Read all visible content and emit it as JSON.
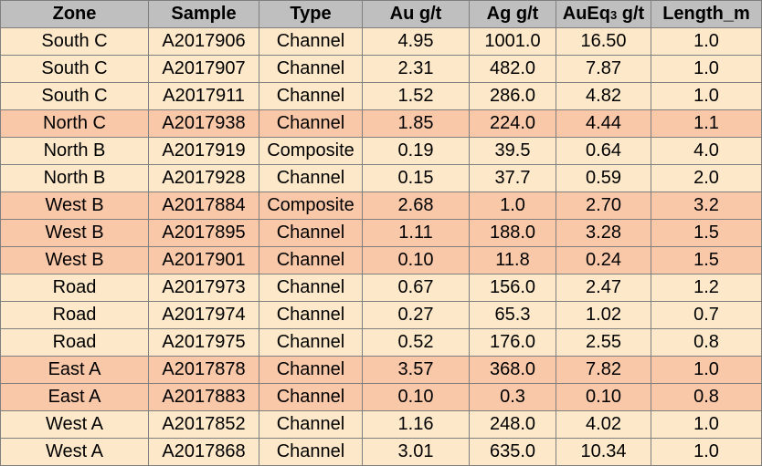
{
  "table": {
    "columns": [
      "Zone",
      "Sample",
      "Type",
      "Au g/t",
      "Ag g/t",
      "AuEq3 g/t",
      "Length_m"
    ],
    "header": {
      "zone": "Zone",
      "sample": "Sample",
      "type": "Type",
      "au": "Au g/t",
      "ag": "Ag g/t",
      "aueq_prefix": "AuEq",
      "aueq_sub": "3",
      "aueq_suffix": " g/t",
      "length": "Length_m"
    },
    "rows": [
      {
        "zone": "South C",
        "sample": "A2017906",
        "type": "Channel",
        "au": "4.95",
        "ag": "1001.0",
        "aueq": "16.50",
        "length": "1.0",
        "shade": "light"
      },
      {
        "zone": "South C",
        "sample": "A2017907",
        "type": "Channel",
        "au": "2.31",
        "ag": "482.0",
        "aueq": "7.87",
        "length": "1.0",
        "shade": "light"
      },
      {
        "zone": "South C",
        "sample": "A2017911",
        "type": "Channel",
        "au": "1.52",
        "ag": "286.0",
        "aueq": "4.82",
        "length": "1.0",
        "shade": "light"
      },
      {
        "zone": "North C",
        "sample": "A2017938",
        "type": "Channel",
        "au": "1.85",
        "ag": "224.0",
        "aueq": "4.44",
        "length": "1.1",
        "shade": "dark"
      },
      {
        "zone": "North B",
        "sample": "A2017919",
        "type": "Composite",
        "au": "0.19",
        "ag": "39.5",
        "aueq": "0.64",
        "length": "4.0",
        "shade": "light"
      },
      {
        "zone": "North B",
        "sample": "A2017928",
        "type": "Channel",
        "au": "0.15",
        "ag": "37.7",
        "aueq": "0.59",
        "length": "2.0",
        "shade": "light"
      },
      {
        "zone": "West B",
        "sample": "A2017884",
        "type": "Composite",
        "au": "2.68",
        "ag": "1.0",
        "aueq": "2.70",
        "length": "3.2",
        "shade": "dark"
      },
      {
        "zone": "West B",
        "sample": "A2017895",
        "type": "Channel",
        "au": "1.11",
        "ag": "188.0",
        "aueq": "3.28",
        "length": "1.5",
        "shade": "dark"
      },
      {
        "zone": "West B",
        "sample": "A2017901",
        "type": "Channel",
        "au": "0.10",
        "ag": "11.8",
        "aueq": "0.24",
        "length": "1.5",
        "shade": "dark"
      },
      {
        "zone": "Road",
        "sample": "A2017973",
        "type": "Channel",
        "au": "0.67",
        "ag": "156.0",
        "aueq": "2.47",
        "length": "1.2",
        "shade": "light"
      },
      {
        "zone": "Road",
        "sample": "A2017974",
        "type": "Channel",
        "au": "0.27",
        "ag": "65.3",
        "aueq": "1.02",
        "length": "0.7",
        "shade": "light"
      },
      {
        "zone": "Road",
        "sample": "A2017975",
        "type": "Channel",
        "au": "0.52",
        "ag": "176.0",
        "aueq": "2.55",
        "length": "0.8",
        "shade": "light"
      },
      {
        "zone": "East A",
        "sample": "A2017878",
        "type": "Channel",
        "au": "3.57",
        "ag": "368.0",
        "aueq": "7.82",
        "length": "1.0",
        "shade": "dark"
      },
      {
        "zone": "East A",
        "sample": "A2017883",
        "type": "Channel",
        "au": "0.10",
        "ag": "0.3",
        "aueq": "0.10",
        "length": "0.8",
        "shade": "dark"
      },
      {
        "zone": "West A",
        "sample": "A2017852",
        "type": "Channel",
        "au": "1.16",
        "ag": "248.0",
        "aueq": "4.02",
        "length": "1.0",
        "shade": "light"
      },
      {
        "zone": "West A",
        "sample": "A2017868",
        "type": "Channel",
        "au": "3.01",
        "ag": "635.0",
        "aueq": "10.34",
        "length": "1.0",
        "shade": "light"
      }
    ]
  },
  "colors": {
    "header_bg": "#bfbfbf",
    "row_light": "#fde9c9",
    "row_dark": "#f9c8a8",
    "grid": "#7f7f7f"
  }
}
